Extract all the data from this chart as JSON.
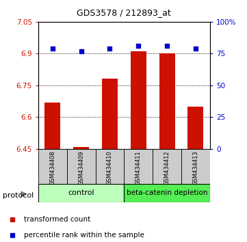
{
  "title": "GDS3578 / 212893_at",
  "samples": [
    "GSM434408",
    "GSM434409",
    "GSM434410",
    "GSM434411",
    "GSM434412",
    "GSM434413"
  ],
  "bar_values": [
    6.67,
    6.46,
    6.78,
    6.91,
    6.9,
    6.65
  ],
  "scatter_values": [
    79,
    77,
    79,
    81,
    81,
    79
  ],
  "bar_bottom": 6.45,
  "ylim_left": [
    6.45,
    7.05
  ],
  "ylim_right": [
    0,
    100
  ],
  "yticks_left": [
    6.45,
    6.6,
    6.75,
    6.9,
    7.05
  ],
  "yticks_right": [
    0,
    25,
    50,
    75,
    100
  ],
  "ytick_labels_left": [
    "6.45",
    "6.6",
    "6.75",
    "6.9",
    "7.05"
  ],
  "ytick_labels_right": [
    "0",
    "25",
    "50",
    "75",
    "100%"
  ],
  "bar_color": "#cc1100",
  "scatter_color": "#0000cc",
  "bg_color": "#ffffff",
  "control_label": "control",
  "depletion_label": "beta-catenin depletion",
  "control_color": "#bbffbb",
  "depletion_color": "#55ee55",
  "xticklabel_bg": "#cccccc",
  "protocol_label": "protocol",
  "legend1": "transformed count",
  "legend2": "percentile rank within the sample",
  "n_control": 3,
  "n_depletion": 3
}
